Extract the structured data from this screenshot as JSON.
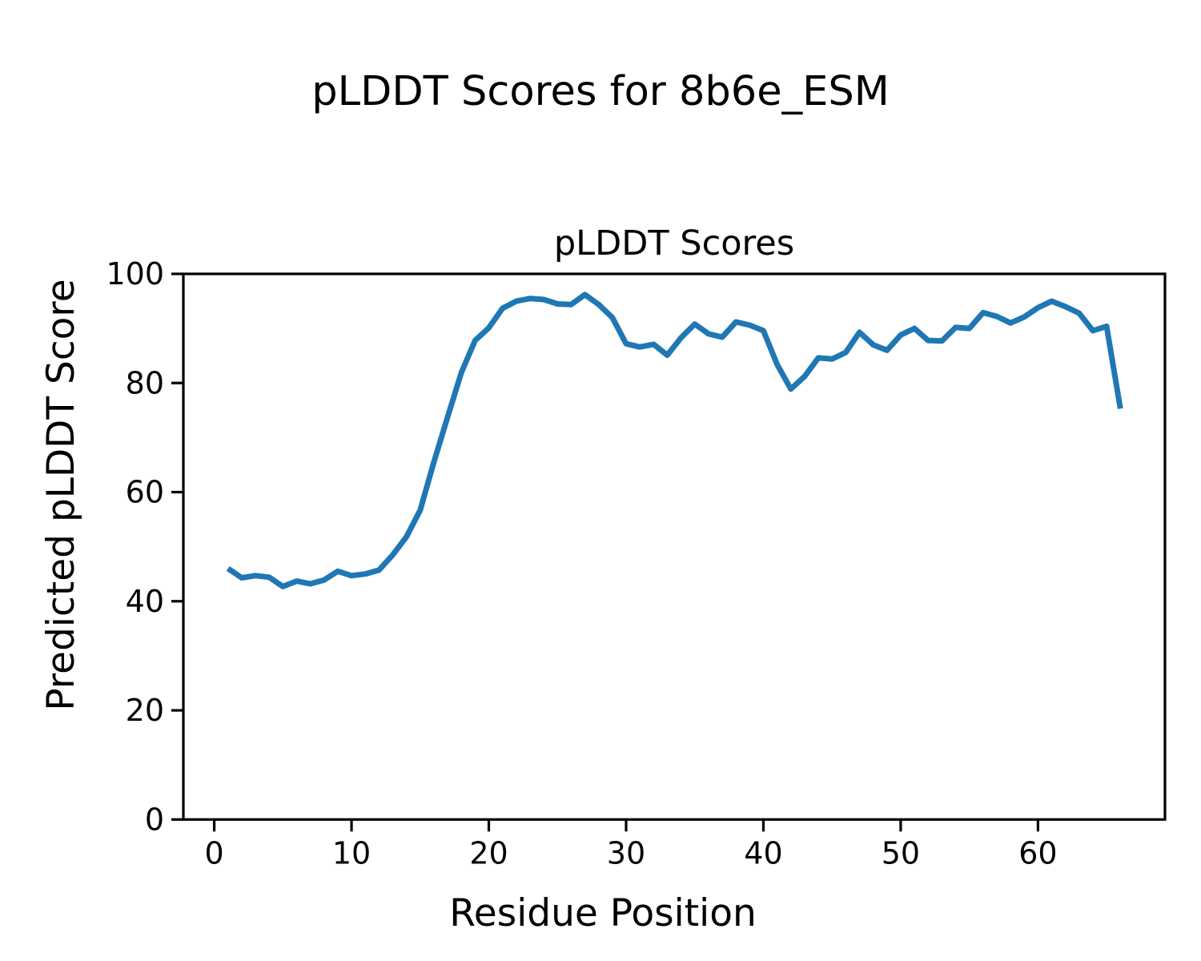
{
  "figure": {
    "suptitle": "pLDDT Scores for 8b6e_ESM",
    "axes_title": "pLDDT Scores",
    "xlabel": "Residue Position",
    "ylabel": "Predicted pLDDT Score"
  },
  "chart_data": {
    "type": "line",
    "title": "pLDDT Scores",
    "suptitle": "pLDDT Scores for 8b6e_ESM",
    "xlabel": "Residue Position",
    "ylabel": "Predicted pLDDT Score",
    "series_name": "pLDDT",
    "x": [
      1,
      2,
      3,
      4,
      5,
      6,
      7,
      8,
      9,
      10,
      11,
      12,
      13,
      14,
      15,
      16,
      17,
      18,
      19,
      20,
      21,
      22,
      23,
      24,
      25,
      26,
      27,
      28,
      29,
      30,
      31,
      32,
      33,
      34,
      35,
      36,
      37,
      38,
      39,
      40,
      41,
      42,
      43,
      44,
      45,
      46,
      47,
      48,
      49,
      50,
      51,
      52,
      53,
      54,
      55,
      56,
      57,
      58,
      59,
      60,
      61,
      62,
      63,
      64,
      65,
      66
    ],
    "values": [
      46.0,
      44.3,
      44.7,
      44.4,
      42.7,
      43.7,
      43.2,
      43.9,
      45.5,
      44.7,
      45.0,
      45.7,
      48.5,
      51.8,
      56.7,
      65.5,
      73.8,
      81.9,
      87.8,
      90.1,
      93.7,
      95.0,
      95.5,
      95.3,
      94.5,
      94.4,
      96.2,
      94.4,
      92.0,
      87.2,
      86.6,
      87.1,
      85.1,
      88.3,
      90.8,
      89.0,
      88.4,
      91.2,
      90.6,
      89.6,
      83.4,
      78.9,
      81.2,
      84.6,
      84.4,
      85.6,
      89.3,
      87.0,
      86.0,
      88.8,
      90.0,
      87.8,
      87.7,
      90.2,
      90.0,
      92.9,
      92.2,
      91.0,
      92.1,
      93.8,
      95.0,
      94.0,
      92.8,
      89.6,
      90.4,
      75.3
    ],
    "xlim": [
      -2.25,
      69.25
    ],
    "ylim": [
      0,
      100
    ],
    "xticks": [
      0,
      10,
      20,
      30,
      40,
      50,
      60
    ],
    "yticks": [
      0,
      20,
      40,
      60,
      80,
      100
    ],
    "line_color": "#1f77b4",
    "axis_color": "#000000",
    "grid": false,
    "legend_position": "none"
  }
}
